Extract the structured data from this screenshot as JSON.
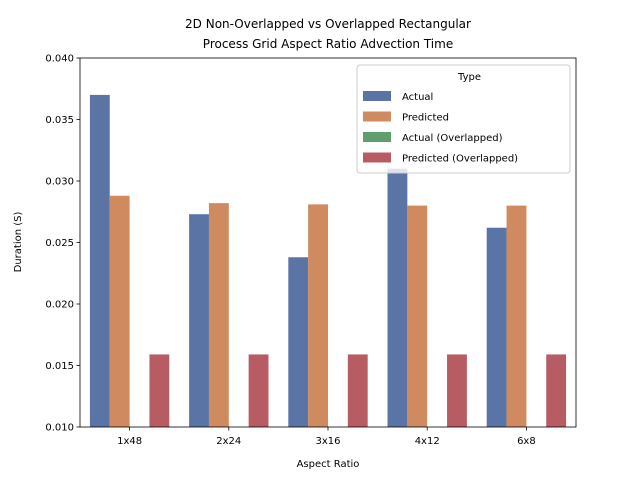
{
  "chart_data": {
    "type": "bar",
    "title_lines": [
      "2D Non-Overlapped vs Overlapped Rectangular",
      "Process Grid Aspect Ratio Advection Time"
    ],
    "xlabel": "Aspect Ratio",
    "ylabel": "Duration (S)",
    "ylim": [
      0.01,
      0.04
    ],
    "yticks": [
      "0.010",
      "0.015",
      "0.020",
      "0.025",
      "0.030",
      "0.035",
      "0.040"
    ],
    "categories": [
      "1x48",
      "2x24",
      "3x16",
      "4x12",
      "6x8"
    ],
    "legend": {
      "title": "Type",
      "placement": "top-right"
    },
    "series": [
      {
        "name": "Actual",
        "color": "#5a74a6",
        "values": [
          0.037,
          0.0273,
          0.0238,
          0.031,
          0.0262
        ]
      },
      {
        "name": "Predicted",
        "color": "#cf8a5f",
        "values": [
          0.0288,
          0.0282,
          0.0281,
          0.028,
          0.028
        ]
      },
      {
        "name": "Actual (Overlapped)",
        "color": "#5f9f6e",
        "values": [
          null,
          null,
          null,
          null,
          null
        ]
      },
      {
        "name": "Predicted (Overlapped)",
        "color": "#b85c63",
        "values": [
          0.0159,
          0.0159,
          0.0159,
          0.0159,
          0.0159
        ]
      }
    ],
    "grid": false
  }
}
